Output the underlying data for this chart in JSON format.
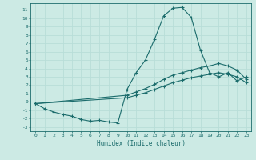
{
  "xlabel": "Humidex (Indice chaleur)",
  "bg_color": "#cceae4",
  "line_color": "#1a6b6b",
  "grid_color": "#b8ddd8",
  "xlim": [
    -0.5,
    23.5
  ],
  "ylim": [
    -3.5,
    11.8
  ],
  "xticks": [
    0,
    1,
    2,
    3,
    4,
    5,
    6,
    7,
    8,
    9,
    10,
    11,
    12,
    13,
    14,
    15,
    16,
    17,
    18,
    19,
    20,
    21,
    22,
    23
  ],
  "yticks": [
    -3,
    -2,
    -1,
    0,
    1,
    2,
    3,
    4,
    5,
    6,
    7,
    8,
    9,
    10,
    11
  ],
  "series1_x": [
    0,
    1,
    2,
    3,
    4,
    5,
    6,
    7,
    8,
    9,
    10,
    11,
    12,
    13,
    14,
    15,
    16,
    17,
    18,
    19,
    20,
    21,
    22,
    23
  ],
  "series1_y": [
    -0.2,
    -0.8,
    -1.2,
    -1.5,
    -1.7,
    -2.1,
    -2.3,
    -2.2,
    -2.4,
    -2.5,
    1.5,
    3.5,
    5.0,
    7.5,
    10.3,
    11.2,
    11.3,
    10.1,
    6.2,
    3.5,
    3.0,
    3.5,
    2.5,
    3.0
  ],
  "series2_x": [
    0,
    10,
    11,
    12,
    13,
    14,
    15,
    16,
    17,
    18,
    19,
    20,
    21,
    22,
    23
  ],
  "series2_y": [
    -0.2,
    0.8,
    1.2,
    1.6,
    2.1,
    2.7,
    3.2,
    3.5,
    3.8,
    4.1,
    4.3,
    4.6,
    4.3,
    3.8,
    2.7
  ],
  "series3_x": [
    0,
    10,
    11,
    12,
    13,
    14,
    15,
    16,
    17,
    18,
    19,
    20,
    21,
    22,
    23
  ],
  "series3_y": [
    -0.2,
    0.5,
    0.8,
    1.1,
    1.5,
    1.9,
    2.3,
    2.6,
    2.9,
    3.1,
    3.3,
    3.5,
    3.3,
    3.0,
    2.3
  ]
}
